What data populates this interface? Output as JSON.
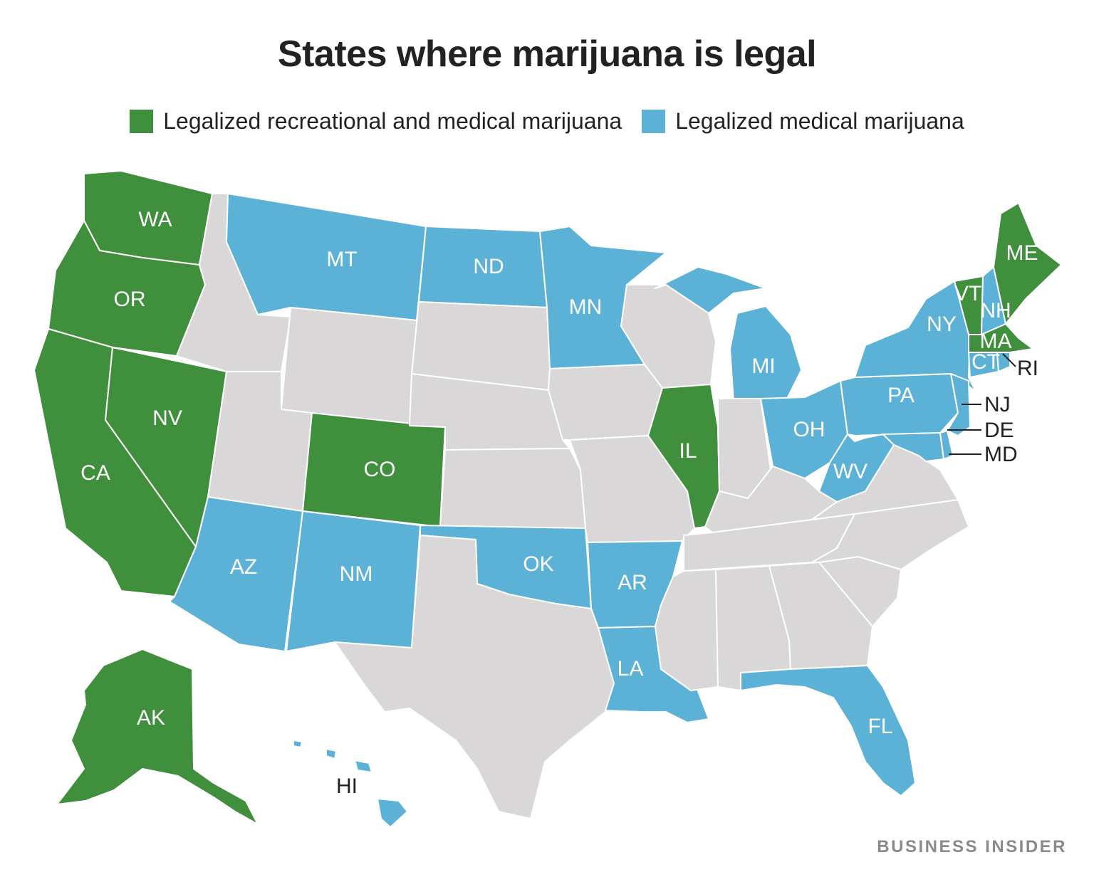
{
  "title": "States where marijuana is legal",
  "legend": {
    "rec": {
      "label": "Legalized recreational and medical marijuana",
      "color": "#3f8f3d"
    },
    "med": {
      "label": "Legalized medical marijuana",
      "color": "#5cb1d6"
    },
    "none": {
      "color": "#d9d7d8"
    }
  },
  "brand": "BUSINESS INSIDER",
  "states": {
    "WA": {
      "label": "WA",
      "status": "rec"
    },
    "OR": {
      "label": "OR",
      "status": "rec"
    },
    "CA": {
      "label": "CA",
      "status": "rec"
    },
    "NV": {
      "label": "NV",
      "status": "rec"
    },
    "CO": {
      "label": "CO",
      "status": "rec"
    },
    "IL": {
      "label": "IL",
      "status": "rec"
    },
    "AK": {
      "label": "AK",
      "status": "rec"
    },
    "VT": {
      "label": "VT",
      "status": "rec"
    },
    "ME": {
      "label": "ME",
      "status": "rec"
    },
    "MA": {
      "label": "MA",
      "status": "rec"
    },
    "MT": {
      "label": "MT",
      "status": "med"
    },
    "ND": {
      "label": "ND",
      "status": "med"
    },
    "MN": {
      "label": "MN",
      "status": "med"
    },
    "MI": {
      "label": "MI",
      "status": "med"
    },
    "OH": {
      "label": "OH",
      "status": "med"
    },
    "WV": {
      "label": "WV",
      "status": "med"
    },
    "PA": {
      "label": "PA",
      "status": "med"
    },
    "NY": {
      "label": "NY",
      "status": "med"
    },
    "NH": {
      "label": "NH",
      "status": "med"
    },
    "CT": {
      "label": "CT",
      "status": "med"
    },
    "RI": {
      "label": "RI",
      "status": "med"
    },
    "NJ": {
      "label": "NJ",
      "status": "med"
    },
    "DE": {
      "label": "DE",
      "status": "med"
    },
    "MD": {
      "label": "MD",
      "status": "med"
    },
    "AZ": {
      "label": "AZ",
      "status": "med"
    },
    "NM": {
      "label": "NM",
      "status": "med"
    },
    "OK": {
      "label": "OK",
      "status": "med"
    },
    "AR": {
      "label": "AR",
      "status": "med"
    },
    "LA": {
      "label": "LA",
      "status": "med"
    },
    "FL": {
      "label": "FL",
      "status": "med"
    },
    "HI": {
      "label": "HI",
      "status": "med"
    },
    "ID": {
      "status": "none"
    },
    "WY": {
      "status": "none"
    },
    "UT": {
      "status": "none"
    },
    "SD": {
      "status": "none"
    },
    "NE": {
      "status": "none"
    },
    "KS": {
      "status": "none"
    },
    "TX": {
      "status": "none"
    },
    "IA": {
      "status": "none"
    },
    "MO": {
      "status": "none"
    },
    "WI": {
      "status": "none"
    },
    "IN": {
      "status": "none"
    },
    "KY": {
      "status": "none"
    },
    "TN": {
      "status": "none"
    },
    "MS": {
      "status": "none"
    },
    "AL": {
      "status": "none"
    },
    "GA": {
      "status": "none"
    },
    "SC": {
      "status": "none"
    },
    "NC": {
      "status": "none"
    },
    "VA": {
      "status": "none"
    }
  }
}
